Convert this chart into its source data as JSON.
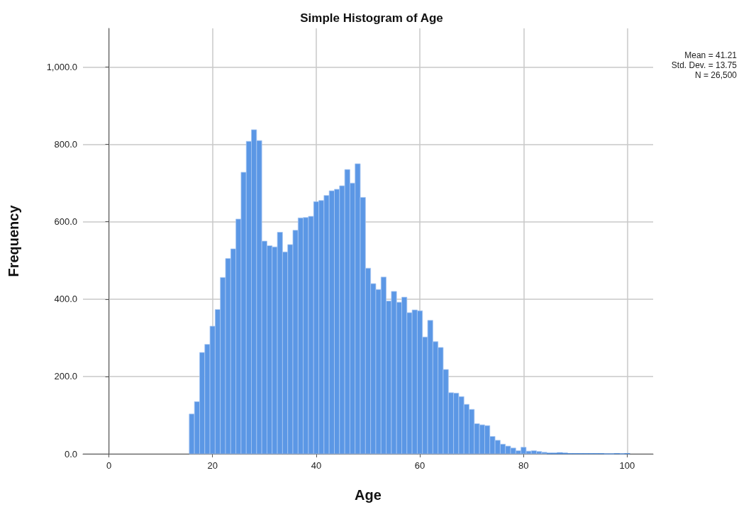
{
  "chart_data": {
    "type": "histogram",
    "title": "Simple Histogram of Age",
    "xlabel": "Age",
    "ylabel": "Frequency",
    "annotations": [
      "Mean = 41.21",
      "Std. Dev. = 13.75",
      "N = 26,500"
    ],
    "bins": [
      15.5,
      16.5,
      17.5,
      18.5,
      19.5,
      20.5,
      21.5,
      22.5,
      23.5,
      24.5,
      25.5,
      26.5,
      27.5,
      28.5,
      29.5,
      30.5,
      31.5,
      32.5,
      33.5,
      34.5,
      35.5,
      36.5,
      37.5,
      38.5,
      39.5,
      40.5,
      41.5,
      42.5,
      43.5,
      44.5,
      45.5,
      46.5,
      47.5,
      48.5,
      49.5,
      50.5,
      51.5,
      52.5,
      53.5,
      54.5,
      55.5,
      56.5,
      57.5,
      58.5,
      59.5,
      60.5,
      61.5,
      62.5,
      63.5,
      64.5,
      65.5,
      66.5,
      67.5,
      68.5,
      69.5,
      70.5,
      71.5,
      72.5,
      73.5,
      74.5,
      75.5,
      76.5,
      77.5,
      78.5,
      79.5,
      80.5,
      81.5,
      82.5,
      83.5,
      84.5,
      85.5,
      86.5,
      87.5,
      88.5,
      89.5,
      90.5,
      91.5,
      92.5,
      93.5,
      94.5,
      95.5,
      96.5,
      97.5,
      98.5,
      99.5,
      100.5
    ],
    "values": [
      103,
      135,
      262,
      283,
      330,
      373,
      456,
      505,
      530,
      607,
      728,
      808,
      838,
      810,
      550,
      538,
      535,
      573,
      522,
      541,
      578,
      610,
      611,
      614,
      652,
      655,
      668,
      680,
      684,
      693,
      735,
      700,
      750,
      663,
      480,
      440,
      425,
      457,
      395,
      420,
      392,
      405,
      365,
      372,
      370,
      302,
      345,
      290,
      275,
      218,
      158,
      157,
      148,
      128,
      115,
      78,
      75,
      73,
      45,
      35,
      25,
      20,
      15,
      8,
      17,
      7,
      8,
      6,
      4,
      2,
      2,
      3,
      2,
      1,
      1,
      1,
      1,
      1,
      1,
      1,
      0,
      0,
      1,
      0,
      1
    ],
    "color": "#5b97e5",
    "xlim": [
      -5,
      105
    ],
    "xticks": [
      0,
      20,
      40,
      60,
      80,
      100
    ],
    "ylim": [
      0,
      1100
    ],
    "yticks": [
      {
        "value": 0,
        "label": "0.0"
      },
      {
        "value": 200,
        "label": "200.0"
      },
      {
        "value": 400,
        "label": "400.0"
      },
      {
        "value": 600,
        "label": "600.0"
      },
      {
        "value": 800,
        "label": "800.0"
      },
      {
        "value": 1000,
        "label": "1,000.0"
      }
    ],
    "grid": true
  }
}
